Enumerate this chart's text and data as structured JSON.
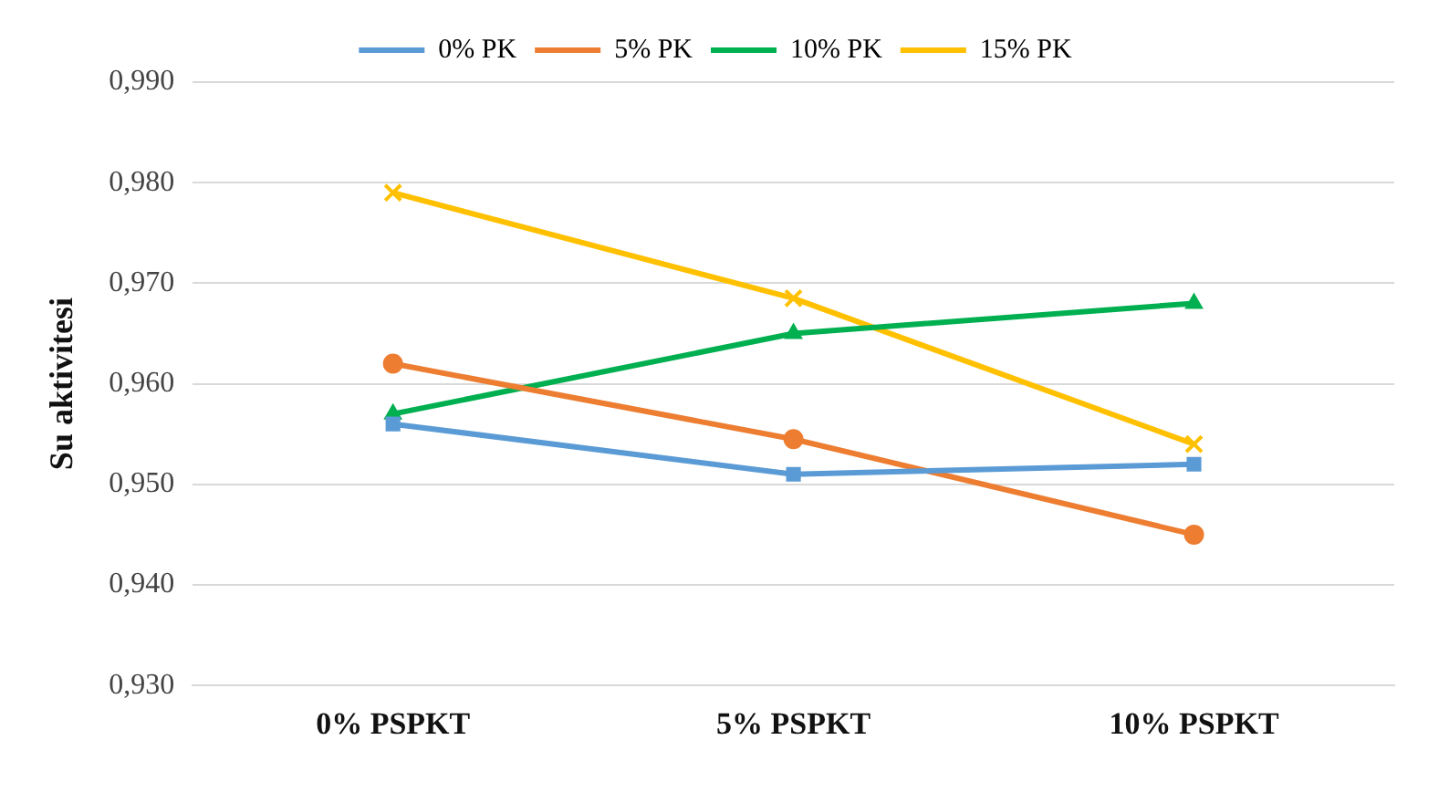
{
  "chart_data": {
    "type": "line",
    "ylabel": "Su aktivitesi",
    "categories": [
      "0% PSPKT",
      "5% PSPKT",
      "10% PSPKT"
    ],
    "series": [
      {
        "name": "0% PK",
        "color": "#5b9bd5",
        "marker": "square",
        "values": [
          0.956,
          0.951,
          0.952
        ]
      },
      {
        "name": "5% PK",
        "color": "#ed7d31",
        "marker": "circle",
        "values": [
          0.962,
          0.9545,
          0.945
        ]
      },
      {
        "name": "10% PK",
        "color": "#00b050",
        "marker": "triangle",
        "values": [
          0.957,
          0.965,
          0.968
        ]
      },
      {
        "name": "15% PK",
        "color": "#ffc000",
        "marker": "cross",
        "values": [
          0.979,
          0.9685,
          0.954
        ]
      }
    ],
    "ylim": [
      0.93,
      0.99
    ],
    "yticks": [
      {
        "value": 0.93,
        "label": "0,930"
      },
      {
        "value": 0.94,
        "label": "0,940"
      },
      {
        "value": 0.95,
        "label": "0,950"
      },
      {
        "value": 0.96,
        "label": "0,960"
      },
      {
        "value": 0.97,
        "label": "0,970"
      },
      {
        "value": 0.98,
        "label": "0,980"
      },
      {
        "value": 0.99,
        "label": "0,990"
      }
    ],
    "grid": "y",
    "legend": "top",
    "line_style": "solid"
  }
}
